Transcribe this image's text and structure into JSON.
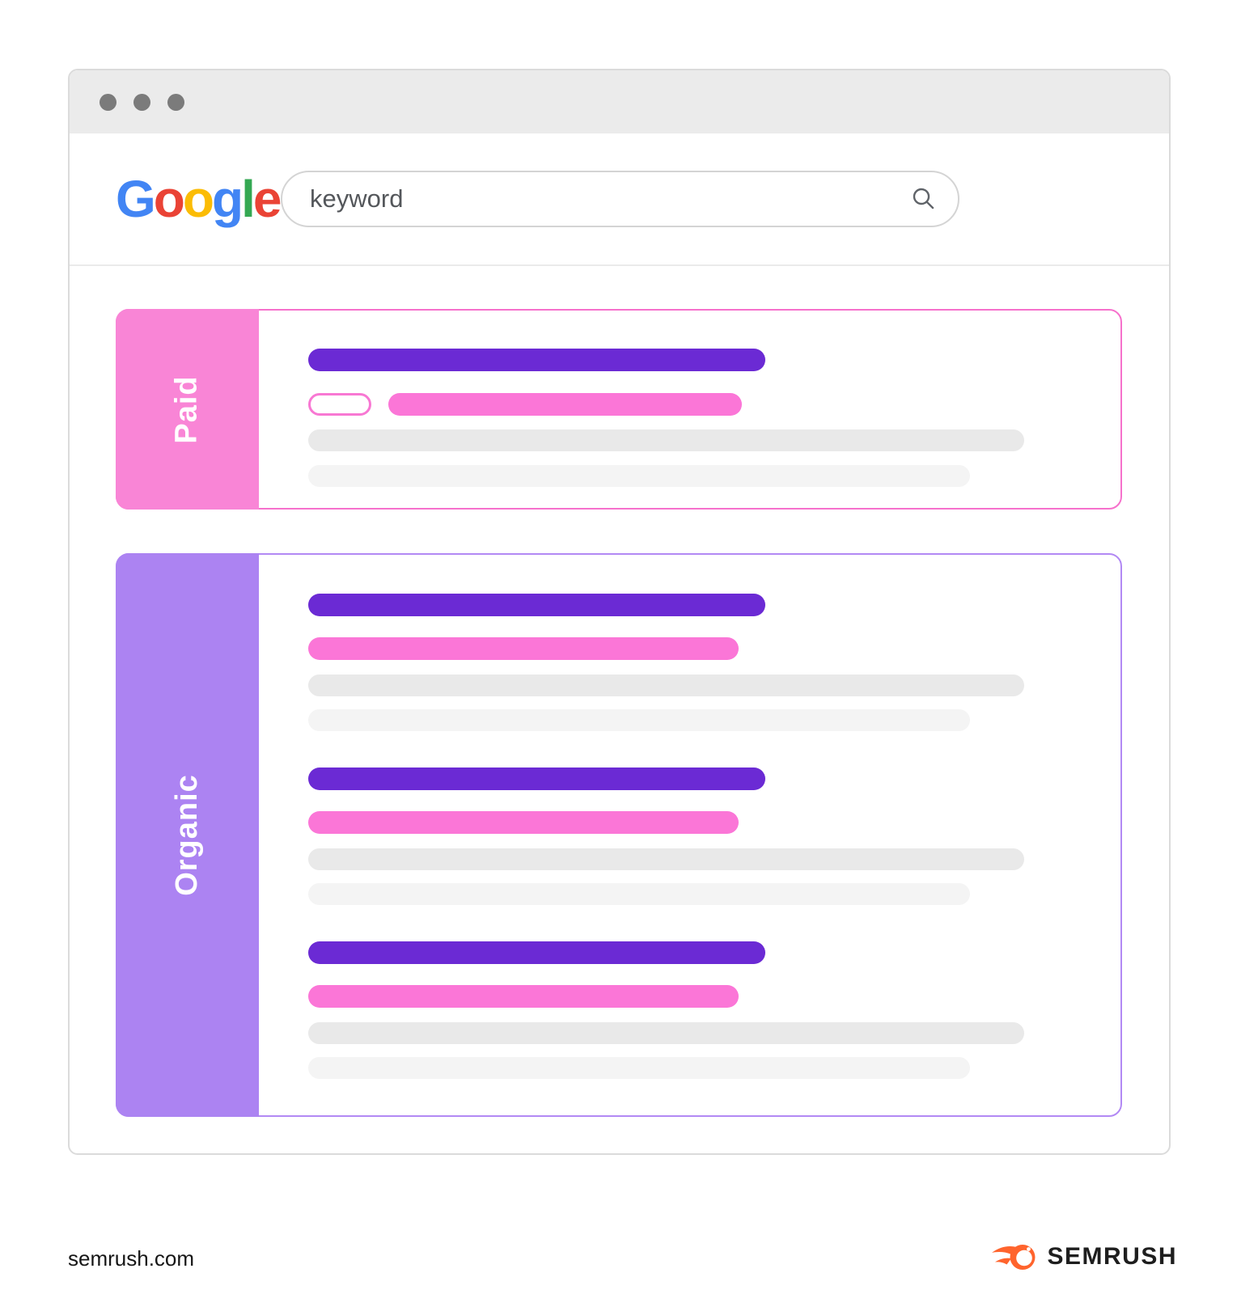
{
  "google": {
    "letters": [
      {
        "char": "G",
        "color": "#4285F4"
      },
      {
        "char": "o",
        "color": "#EA4335"
      },
      {
        "char": "o",
        "color": "#FBBC05"
      },
      {
        "char": "g",
        "color": "#4285F4"
      },
      {
        "char": "l",
        "color": "#34A853"
      },
      {
        "char": "e",
        "color": "#EA4335"
      }
    ]
  },
  "search": {
    "value": "keyword"
  },
  "sections": {
    "paid": {
      "label": "Paid",
      "ad_results": 1
    },
    "organic": {
      "label": "Organic",
      "result_count": 3
    }
  },
  "colors": {
    "win_border": "#DBDBDB",
    "titlebar": "#EBEBEB",
    "dot": "#7B7B7B",
    "divider": "#EAEAEA",
    "search_border": "#D4D4D4",
    "search_text": "#54575B",
    "icon_stroke": "#5F6368",
    "paid_bg": "#F985D6",
    "paid_border": "#F671CC",
    "pill_border": "#F878D3",
    "organic_bg": "#AC83F2",
    "organic_border": "#B289F4",
    "purple_bar": "#6B2AD4",
    "pink_bar": "#FB76D7",
    "gray_bar": "#E9E9E9",
    "light_bar": "#F4F4F4",
    "footer_text": "#161616",
    "brand_text": "#1E1E1E",
    "brand_orange": "#FF642D"
  },
  "footer": {
    "source": "semrush.com",
    "brand": "SEMRUSH"
  }
}
